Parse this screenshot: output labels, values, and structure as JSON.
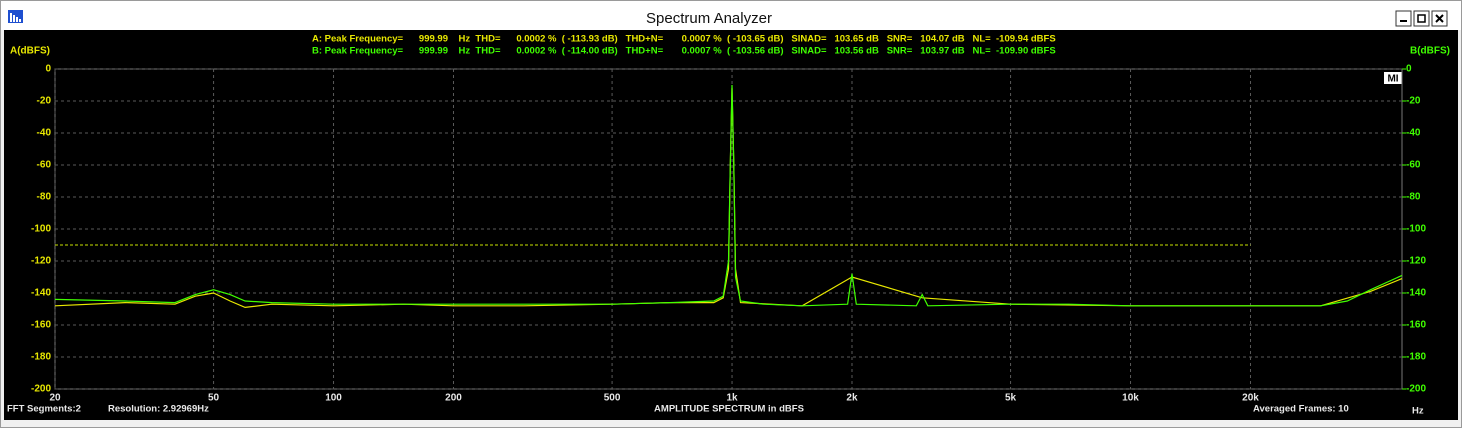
{
  "window_title": "Spectrum Analyzer",
  "chart_data": {
    "type": "line",
    "measurements": [
      "A: Peak Frequency=      999.99    Hz  THD=      0.0002 %  ( -113.93 dB)   THD+N=       0.0007 %  ( -103.65 dB)   SINAD=   103.65 dB   SNR=   104.07 dB   NL=  -109.94 dBFS",
      "B: Peak Frequency=      999.99    Hz  THD=      0.0002 %  ( -114.00 dB)   THD+N=       0.0007 %  ( -103.56 dB)   SINAD=   103.56 dB   SNR=   103.97 dB   NL=  -109.90 dBFS"
    ],
    "y_label": "A(dBFS)",
    "y2_label": "B(dBFS)",
    "x_label": "AMPLITUDE SPECTRUM in dBFS",
    "x_unit": "Hz",
    "fft_segments": "FFT Segments:2",
    "resolution": "Resolution: 2.92969Hz",
    "averaged_frames": "Averaged Frames: 10",
    "x_scale": "log",
    "grid": true,
    "xlim": [
      20,
      48000
    ],
    "xticks": [
      20,
      50,
      100,
      200,
      500,
      {
        "value": 1000,
        "label": "1k"
      },
      {
        "value": 2000,
        "label": "2k"
      },
      {
        "value": 5000,
        "label": "5k"
      },
      {
        "value": 10000,
        "label": "10k"
      },
      {
        "value": 20000,
        "label": "20k"
      }
    ],
    "ylim": [
      -200,
      0
    ],
    "yticks": [
      0,
      -20,
      -40,
      -60,
      -80,
      -100,
      -120,
      -140,
      -160,
      -180,
      -200
    ],
    "y2lim": [
      -200,
      0
    ],
    "y2ticks": [
      0,
      -20,
      -40,
      -60,
      -80,
      -100,
      -120,
      -140,
      -160,
      -180,
      -200
    ],
    "threshold": {
      "y": -110,
      "xlim": [
        20,
        20000
      ],
      "color": "#c8e000"
    },
    "series": [
      {
        "name": "A",
        "color": "#e8e800",
        "x": [
          20,
          30,
          40,
          45,
          50,
          55,
          60,
          70,
          100,
          150,
          200,
          300,
          500,
          700,
          900,
          950,
          980,
          990,
          1000,
          1010,
          1020,
          1050,
          1500,
          2000,
          3000,
          5000,
          10000,
          20000,
          30000,
          40000,
          48000
        ],
        "values": [
          -148,
          -146,
          -147,
          -142,
          -140,
          -145,
          -149,
          -147,
          -148,
          -147,
          -148,
          -148,
          -147,
          -146,
          -146,
          -143,
          -125,
          -60,
          -12,
          -60,
          -125,
          -146,
          -148,
          -130,
          -143,
          -147,
          -148,
          -148,
          -148,
          -139,
          -131
        ]
      },
      {
        "name": "B",
        "color": "#40ff00",
        "axis": "y2",
        "x": [
          20,
          30,
          40,
          45,
          50,
          55,
          60,
          70,
          100,
          150,
          200,
          300,
          500,
          700,
          900,
          950,
          980,
          990,
          1000,
          1010,
          1020,
          1050,
          1200,
          1500,
          1950,
          2000,
          2050,
          2900,
          3000,
          3100,
          5000,
          7000,
          10000,
          15000,
          20000,
          30000,
          35000,
          40000,
          48000
        ],
        "values": [
          -144,
          -145,
          -146,
          -141,
          -138,
          -141,
          -145,
          -146,
          -147,
          -147,
          -147,
          -147,
          -147,
          -146,
          -145,
          -142,
          -120,
          -60,
          -10,
          -60,
          -130,
          -145,
          -147,
          -148,
          -147,
          -128,
          -147,
          -148,
          -141,
          -148,
          -147,
          -147,
          -148,
          -148,
          -148,
          -148,
          -145,
          -138,
          -129
        ]
      }
    ]
  }
}
